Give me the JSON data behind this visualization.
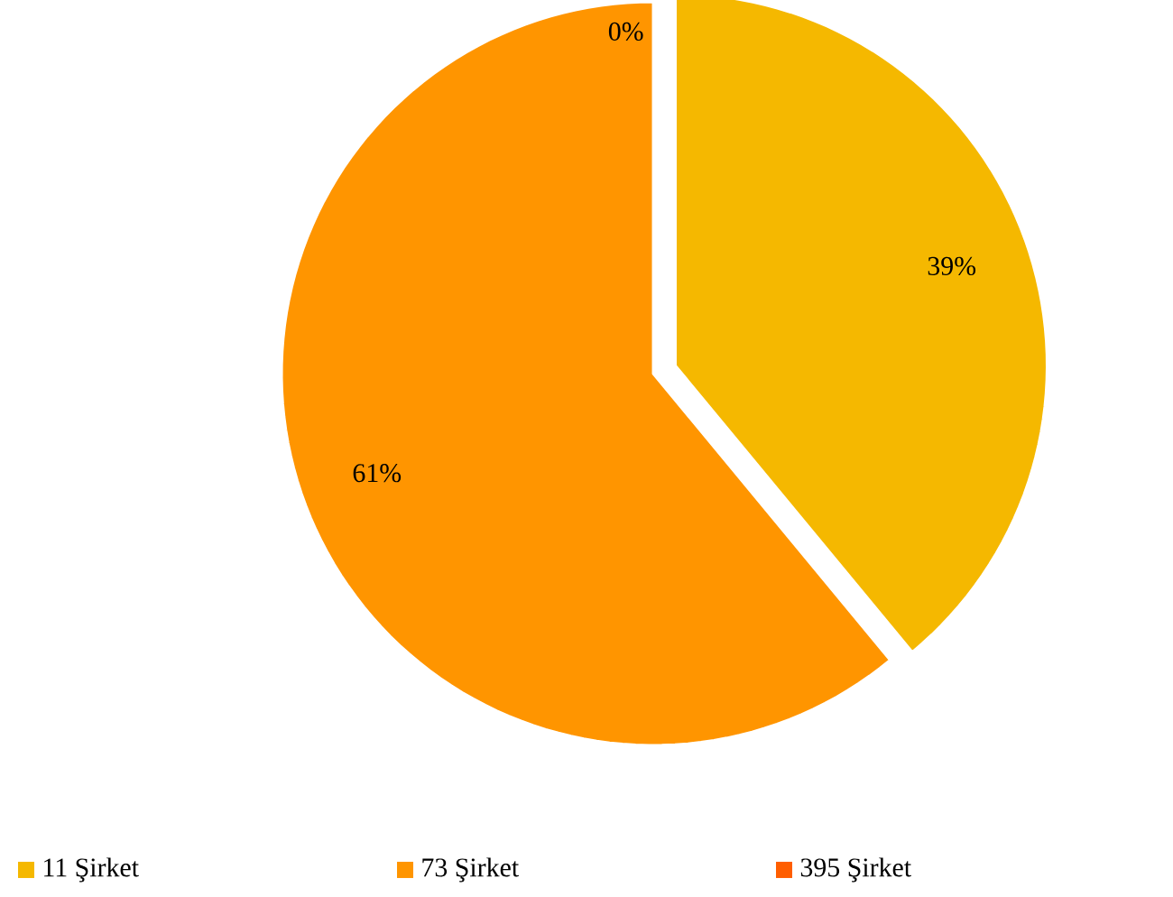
{
  "chart_data": {
    "type": "pie",
    "categories": [
      "11 Şirket",
      "73 Şirket",
      "395 Şirket"
    ],
    "values": [
      39,
      61,
      0
    ],
    "value_labels": [
      "39%",
      "61%",
      "0%"
    ],
    "colors": [
      "#f5b800",
      "#ff9500",
      "#ff5e00"
    ],
    "legend": "bottom"
  }
}
